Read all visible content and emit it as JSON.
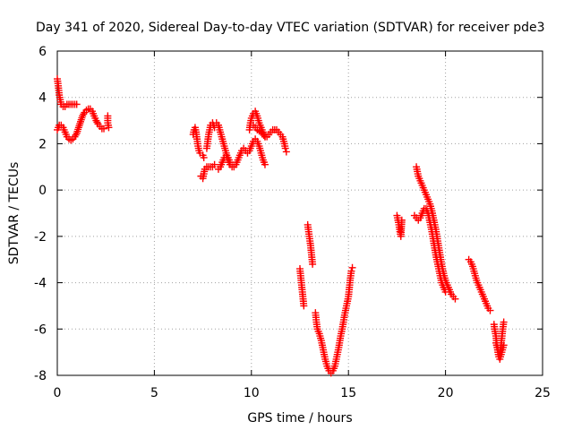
{
  "chart_data": {
    "type": "scatter",
    "title": "Day 341 of 2020, Sidereal Day-to-day VTEC variation (SDTVAR) for receiver pde3",
    "xlabel": "GPS time / hours",
    "ylabel": "SDTVAR / TECUs",
    "xlim": [
      0,
      25
    ],
    "ylim": [
      -8,
      6
    ],
    "xticks": [
      0,
      5,
      10,
      15,
      20,
      25
    ],
    "yticks": [
      -8,
      -6,
      -4,
      -2,
      0,
      2,
      4,
      6
    ],
    "xtick_labels": [
      "0",
      "5",
      "10",
      "15",
      "20",
      "25"
    ],
    "ytick_labels": [
      "-8",
      "-6",
      "-4",
      "-2",
      "0",
      "2",
      "4",
      "6"
    ],
    "grid": true,
    "marker": "+",
    "color": "#ff0000",
    "series": [
      {
        "name": "SDTVAR",
        "segments": [
          [
            [
              0.0,
              4.8
            ],
            [
              0.05,
              4.5
            ],
            [
              0.1,
              4.1
            ],
            [
              0.15,
              3.9
            ],
            [
              0.2,
              3.7
            ],
            [
              0.3,
              3.6
            ],
            [
              0.4,
              3.6
            ],
            [
              0.5,
              3.7
            ],
            [
              0.6,
              3.7
            ],
            [
              0.7,
              3.7
            ],
            [
              0.8,
              3.7
            ],
            [
              0.9,
              3.7
            ],
            [
              1.0,
              3.7
            ]
          ],
          [
            [
              0.0,
              2.6
            ],
            [
              0.1,
              2.8
            ],
            [
              0.2,
              2.8
            ],
            [
              0.3,
              2.7
            ],
            [
              0.4,
              2.5
            ],
            [
              0.5,
              2.3
            ],
            [
              0.6,
              2.2
            ],
            [
              0.7,
              2.15
            ],
            [
              0.8,
              2.2
            ],
            [
              0.9,
              2.3
            ],
            [
              1.0,
              2.45
            ],
            [
              1.1,
              2.7
            ],
            [
              1.2,
              2.95
            ],
            [
              1.3,
              3.2
            ],
            [
              1.4,
              3.35
            ],
            [
              1.5,
              3.45
            ],
            [
              1.6,
              3.5
            ],
            [
              1.7,
              3.5
            ],
            [
              1.8,
              3.4
            ],
            [
              1.9,
              3.2
            ],
            [
              2.0,
              3.0
            ],
            [
              2.1,
              2.85
            ],
            [
              2.2,
              2.75
            ],
            [
              2.3,
              2.65
            ],
            [
              2.4,
              2.65
            ]
          ],
          [
            [
              2.6,
              3.2
            ],
            [
              2.6,
              2.9
            ],
            [
              2.65,
              2.7
            ]
          ],
          [
            [
              7.0,
              2.4
            ],
            [
              7.05,
              2.6
            ],
            [
              7.1,
              2.7
            ],
            [
              7.15,
              2.5
            ],
            [
              7.2,
              2.2
            ],
            [
              7.25,
              1.9
            ],
            [
              7.3,
              1.7
            ],
            [
              7.35,
              1.6
            ]
          ],
          [
            [
              7.5,
              1.5
            ],
            [
              7.55,
              1.4
            ]
          ],
          [
            [
              7.4,
              0.6
            ],
            [
              7.5,
              0.5
            ],
            [
              7.6,
              0.9
            ],
            [
              7.7,
              1.0
            ],
            [
              7.8,
              1.0
            ],
            [
              7.9,
              1.0
            ],
            [
              8.0,
              1.0
            ],
            [
              8.1,
              1.1
            ]
          ],
          [
            [
              7.7,
              1.8
            ],
            [
              7.75,
              2.1
            ],
            [
              7.8,
              2.4
            ],
            [
              7.85,
              2.6
            ],
            [
              7.9,
              2.8
            ],
            [
              8.0,
              2.9
            ],
            [
              8.1,
              2.7
            ]
          ],
          [
            [
              8.2,
              2.9
            ],
            [
              8.3,
              2.8
            ],
            [
              8.4,
              2.5
            ],
            [
              8.5,
              2.2
            ],
            [
              8.6,
              1.9
            ],
            [
              8.7,
              1.6
            ],
            [
              8.8,
              1.3
            ],
            [
              8.9,
              1.1
            ],
            [
              9.0,
              1.0
            ],
            [
              9.1,
              1.0
            ],
            [
              9.2,
              1.1
            ],
            [
              9.3,
              1.3
            ],
            [
              9.4,
              1.5
            ],
            [
              9.5,
              1.7
            ],
            [
              9.6,
              1.8
            ],
            [
              9.7,
              1.7
            ],
            [
              9.8,
              1.6
            ],
            [
              9.9,
              1.7
            ],
            [
              10.0,
              1.9
            ],
            [
              10.1,
              2.1
            ],
            [
              10.2,
              2.2
            ],
            [
              10.3,
              2.1
            ],
            [
              10.4,
              1.9
            ],
            [
              10.5,
              1.6
            ],
            [
              10.6,
              1.3
            ],
            [
              10.7,
              1.1
            ]
          ],
          [
            [
              8.3,
              0.9
            ],
            [
              8.4,
              1.0
            ],
            [
              8.5,
              1.2
            ],
            [
              8.6,
              1.4
            ],
            [
              8.7,
              1.5
            ],
            [
              8.8,
              1.4
            ],
            [
              8.9,
              1.2
            ]
          ],
          [
            [
              9.9,
              2.6
            ],
            [
              9.95,
              2.9
            ],
            [
              10.0,
              3.1
            ],
            [
              10.1,
              3.3
            ],
            [
              10.2,
              3.4
            ],
            [
              10.3,
              3.2
            ],
            [
              10.4,
              2.9
            ],
            [
              10.5,
              2.7
            ],
            [
              10.6,
              2.5
            ],
            [
              10.7,
              2.3
            ],
            [
              10.8,
              2.3
            ],
            [
              10.9,
              2.4
            ],
            [
              11.0,
              2.5
            ],
            [
              11.1,
              2.6
            ],
            [
              11.2,
              2.6
            ],
            [
              11.3,
              2.6
            ],
            [
              11.4,
              2.5
            ],
            [
              11.5,
              2.4
            ],
            [
              11.6,
              2.3
            ],
            [
              11.7,
              2.0
            ],
            [
              11.75,
              1.8
            ],
            [
              11.8,
              1.65
            ]
          ],
          [
            [
              10.1,
              2.8
            ],
            [
              10.2,
              2.7
            ],
            [
              10.3,
              2.6
            ],
            [
              10.5,
              2.5
            ],
            [
              10.7,
              2.3
            ]
          ],
          [
            [
              12.5,
              -3.4
            ],
            [
              12.55,
              -3.8
            ],
            [
              12.6,
              -4.2
            ],
            [
              12.65,
              -4.6
            ],
            [
              12.7,
              -5.0
            ]
          ],
          [
            [
              12.9,
              -1.5
            ],
            [
              12.95,
              -1.8
            ],
            [
              13.0,
              -2.1
            ],
            [
              13.05,
              -2.4
            ],
            [
              13.1,
              -2.8
            ],
            [
              13.15,
              -3.2
            ]
          ],
          [
            [
              13.3,
              -5.3
            ],
            [
              13.35,
              -5.7
            ],
            [
              13.4,
              -6.0
            ],
            [
              13.5,
              -6.2
            ],
            [
              13.6,
              -6.5
            ],
            [
              13.7,
              -6.9
            ],
            [
              13.8,
              -7.3
            ],
            [
              13.9,
              -7.6
            ],
            [
              14.0,
              -7.8
            ],
            [
              14.1,
              -7.9
            ],
            [
              14.2,
              -7.8
            ],
            [
              14.3,
              -7.6
            ],
            [
              14.4,
              -7.2
            ],
            [
              14.5,
              -6.8
            ],
            [
              14.6,
              -6.3
            ],
            [
              14.7,
              -5.9
            ],
            [
              14.8,
              -5.4
            ],
            [
              14.9,
              -5.0
            ],
            [
              15.0,
              -4.6
            ],
            [
              15.05,
              -4.2
            ],
            [
              15.1,
              -3.8
            ],
            [
              15.15,
              -3.5
            ],
            [
              15.2,
              -3.35
            ]
          ],
          [
            [
              17.5,
              -1.1
            ],
            [
              17.55,
              -1.3
            ],
            [
              17.6,
              -1.5
            ],
            [
              17.65,
              -1.8
            ],
            [
              17.7,
              -2.0
            ],
            [
              17.75,
              -1.3
            ]
          ],
          [
            [
              18.5,
              1.0
            ],
            [
              18.55,
              0.8
            ],
            [
              18.6,
              0.6
            ],
            [
              18.7,
              0.4
            ],
            [
              18.8,
              0.2
            ],
            [
              18.9,
              0.0
            ],
            [
              19.0,
              -0.2
            ],
            [
              19.1,
              -0.4
            ],
            [
              19.2,
              -0.6
            ],
            [
              19.3,
              -0.9
            ],
            [
              19.4,
              -1.3
            ],
            [
              19.5,
              -1.7
            ],
            [
              19.6,
              -2.2
            ],
            [
              19.7,
              -2.7
            ],
            [
              19.8,
              -3.2
            ],
            [
              19.9,
              -3.6
            ],
            [
              20.0,
              -3.9
            ],
            [
              20.1,
              -4.1
            ],
            [
              20.2,
              -4.3
            ],
            [
              20.3,
              -4.5
            ],
            [
              20.4,
              -4.6
            ],
            [
              20.5,
              -4.7
            ]
          ],
          [
            [
              18.4,
              -1.1
            ],
            [
              18.5,
              -1.2
            ],
            [
              18.6,
              -1.3
            ],
            [
              18.7,
              -1.2
            ],
            [
              18.8,
              -1.0
            ],
            [
              18.9,
              -0.8
            ],
            [
              19.0,
              -0.8
            ],
            [
              19.1,
              -1.0
            ],
            [
              19.2,
              -1.4
            ],
            [
              19.3,
              -1.8
            ],
            [
              19.4,
              -2.3
            ],
            [
              19.5,
              -2.8
            ],
            [
              19.6,
              -3.2
            ],
            [
              19.7,
              -3.6
            ],
            [
              19.8,
              -4.0
            ],
            [
              19.9,
              -4.2
            ],
            [
              20.0,
              -4.4
            ]
          ],
          [
            [
              21.2,
              -3.0
            ],
            [
              21.3,
              -3.1
            ],
            [
              21.4,
              -3.3
            ],
            [
              21.5,
              -3.6
            ],
            [
              21.6,
              -3.9
            ],
            [
              21.7,
              -4.1
            ],
            [
              21.8,
              -4.3
            ],
            [
              21.9,
              -4.5
            ],
            [
              22.0,
              -4.7
            ],
            [
              22.1,
              -4.9
            ],
            [
              22.2,
              -5.1
            ],
            [
              22.3,
              -5.2
            ]
          ],
          [
            [
              22.5,
              -5.8
            ],
            [
              22.55,
              -6.1
            ],
            [
              22.6,
              -6.3
            ],
            [
              22.65,
              -6.7
            ],
            [
              22.7,
              -7.0
            ],
            [
              22.75,
              -7.2
            ],
            [
              22.8,
              -7.1
            ],
            [
              22.85,
              -6.8
            ],
            [
              22.9,
              -6.4
            ],
            [
              22.95,
              -6.0
            ],
            [
              23.0,
              -5.7
            ]
          ],
          [
            [
              22.6,
              -6.6
            ],
            [
              22.7,
              -6.9
            ],
            [
              22.8,
              -7.3
            ],
            [
              22.9,
              -7.0
            ],
            [
              23.0,
              -6.7
            ]
          ]
        ]
      }
    ]
  }
}
